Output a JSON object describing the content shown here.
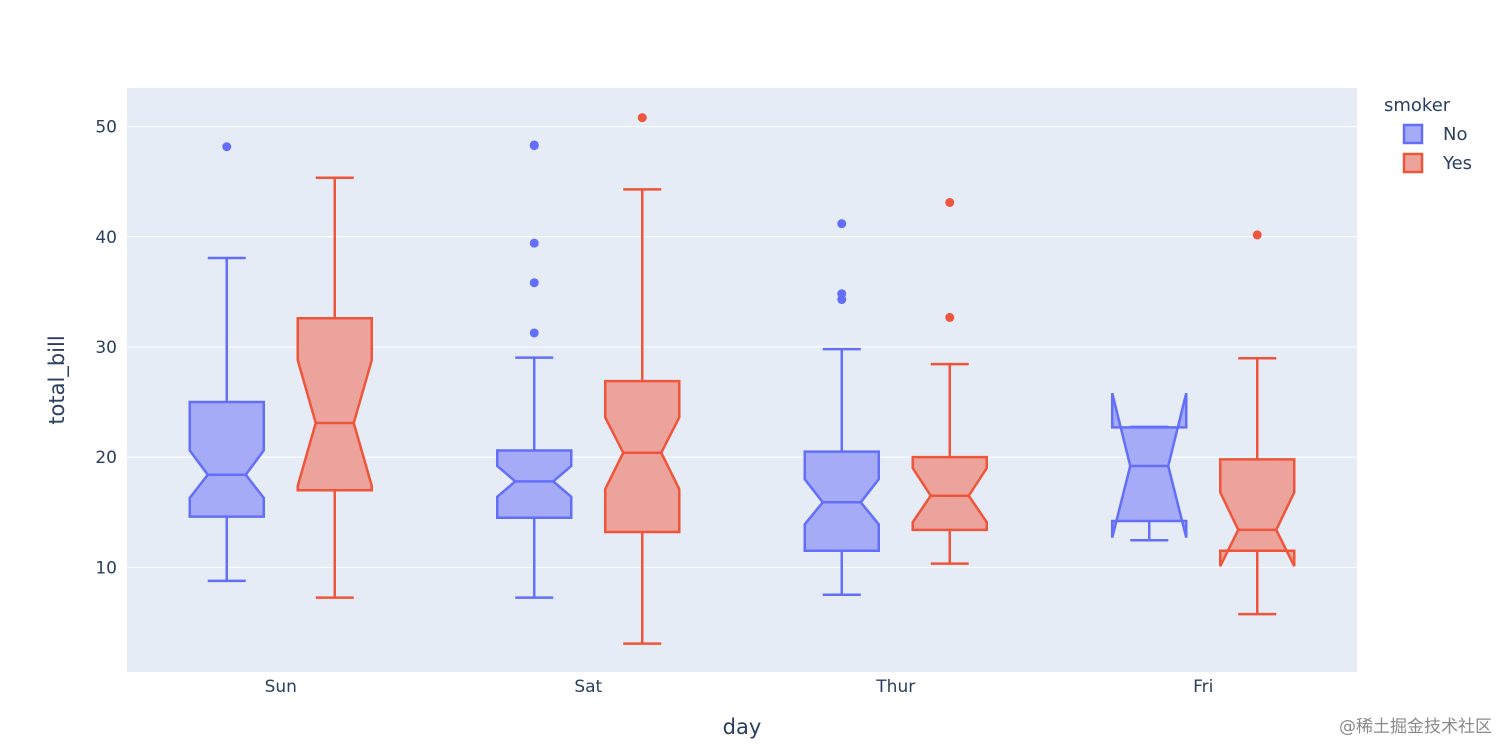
{
  "chart_data": {
    "type": "box",
    "notched": true,
    "title": "",
    "xlabel": "day",
    "ylabel": "total_bill",
    "categories": [
      "Sun",
      "Sat",
      "Thur",
      "Fri"
    ],
    "yticks": [
      10,
      20,
      30,
      40,
      50
    ],
    "ylim": [
      0.5,
      53.5
    ],
    "grid": true,
    "legend": {
      "title": "smoker",
      "position": "top-right"
    },
    "series": [
      {
        "name": "No",
        "color": "#636efa",
        "fill": "#a5abf7",
        "boxes": [
          {
            "category": "Sun",
            "min": 8.77,
            "q1": 14.6,
            "median": 18.4,
            "q3": 25.0,
            "max": 38.07,
            "notch_low": 16.3,
            "notch_high": 20.6,
            "outliers": [
              48.17
            ]
          },
          {
            "category": "Sat",
            "min": 7.25,
            "q1": 14.5,
            "median": 17.8,
            "q3": 20.6,
            "max": 29.03,
            "notch_low": 16.4,
            "notch_high": 19.2,
            "outliers": [
              48.33,
              48.27,
              39.42,
              35.83,
              31.27
            ]
          },
          {
            "category": "Thur",
            "min": 7.51,
            "q1": 11.5,
            "median": 15.9,
            "q3": 20.5,
            "max": 29.8,
            "notch_low": 13.9,
            "notch_high": 18.0,
            "outliers": [
              41.19,
              34.83,
              34.3
            ]
          },
          {
            "category": "Fri",
            "min": 12.46,
            "q1": 14.2,
            "median": 19.2,
            "q3": 22.7,
            "max": 22.75,
            "notch_low": 12.7,
            "notch_high": 25.8,
            "outliers": []
          }
        ]
      },
      {
        "name": "Yes",
        "color": "#ef553b",
        "fill": "#eca39b",
        "boxes": [
          {
            "category": "Sun",
            "min": 7.25,
            "q1": 17.0,
            "median": 23.1,
            "q3": 32.6,
            "max": 45.35,
            "notch_low": 17.4,
            "notch_high": 28.8,
            "outliers": []
          },
          {
            "category": "Sat",
            "min": 3.07,
            "q1": 13.2,
            "median": 20.4,
            "q3": 26.9,
            "max": 44.3,
            "notch_low": 17.1,
            "notch_high": 23.6,
            "outliers": [
              50.81
            ]
          },
          {
            "category": "Thur",
            "min": 10.34,
            "q1": 13.4,
            "median": 16.5,
            "q3": 20.0,
            "max": 28.44,
            "notch_low": 14.1,
            "notch_high": 19.0,
            "outliers": [
              43.11,
              32.68
            ]
          },
          {
            "category": "Fri",
            "min": 5.75,
            "q1": 11.5,
            "median": 13.4,
            "q3": 19.8,
            "max": 28.97,
            "notch_low": 10.1,
            "notch_high": 16.8,
            "outliers": [
              40.17
            ]
          }
        ]
      }
    ]
  },
  "watermark": "@稀土掘金技术社区"
}
